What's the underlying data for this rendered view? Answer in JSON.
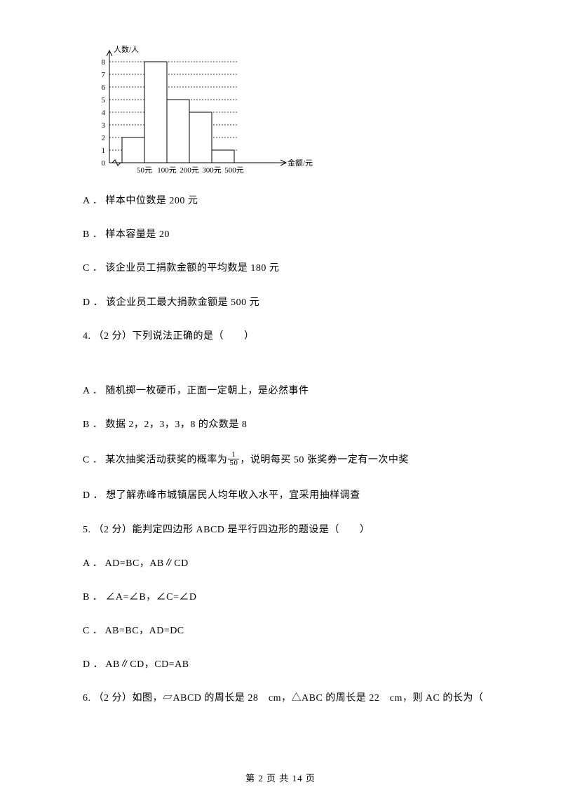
{
  "chart": {
    "type": "bar",
    "y_axis_label": "人数/人",
    "x_axis_label": "金额/元",
    "y_ticks": [
      0,
      1,
      2,
      3,
      4,
      5,
      6,
      7,
      8
    ],
    "x_tick_labels": [
      "50元",
      "100元",
      "200元",
      "300元",
      "500元"
    ],
    "bars": [
      {
        "left_index": 0,
        "right_index": 1,
        "value": 2
      },
      {
        "left_index": 1,
        "right_index": 2,
        "value": 8
      },
      {
        "left_index": 2,
        "right_index": 3,
        "value": 5
      },
      {
        "left_index": 3,
        "right_index": 4,
        "value": 4
      },
      {
        "left_index": 4,
        "right_index": 5,
        "value": 1
      }
    ],
    "axis_color": "#000000",
    "bar_border_color": "#000000",
    "bar_fill": "#ffffff",
    "grid_dash": "2,2",
    "font_size_axis": 11,
    "font_size_tick": 11,
    "line_width": 1
  },
  "options_q3": {
    "a": "A ． 样本中位数是 200 元",
    "b": "B ． 样本容量是 20",
    "c": "C ． 该企业员工捐款金额的平均数是 180 元",
    "d": "D ． 该企业员工最大捐款金额是 500 元"
  },
  "q4": {
    "stem": "4.  （2 分）下列说法正确的是（　　）",
    "a": "A ． 随机掷一枚硬币，正面一定朝上，是必然事件",
    "b": "B ． 数据 2，2，3，3，8 的众数是 8",
    "c_pre": "C ． 某次抽奖活动获奖的概率为",
    "c_post": "，说明每买 50 张奖券一定有一次中奖",
    "c_frac_num": "1",
    "c_frac_den": "50",
    "d": "D ． 想了解赤峰市城镇居民人均年收入水平，宜采用抽样调查"
  },
  "q5": {
    "stem": "5.  （2 分）能判定四边形 ABCD 是平行四边形的题设是（　　）",
    "a": "A ． AD=BC，AB∥CD",
    "b": "B ． ∠A=∠B，∠C=∠D",
    "c": "C ． AB=BC，AD=DC",
    "d": "D ． AB∥CD，CD=AB"
  },
  "q6": {
    "stem": "6.  （2 分）如图，▱ABCD 的周长是 28　cm，△ABC 的周长是 22　cm，则 AC 的长为（"
  },
  "footer": "第 2 页 共 14 页"
}
